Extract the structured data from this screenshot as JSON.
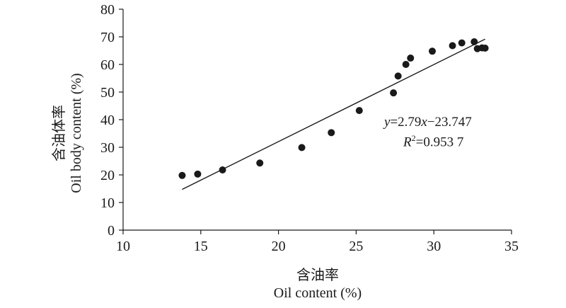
{
  "chart_data": {
    "type": "scatter",
    "xlabel_cn": "含油率",
    "xlabel_en": "Oil content (%)",
    "ylabel_cn": "含油体率",
    "ylabel_en": "Oil body content (%)",
    "xlim": [
      10,
      35
    ],
    "ylim": [
      0,
      80
    ],
    "xticks": [
      10,
      15,
      20,
      25,
      30,
      35
    ],
    "yticks": [
      0,
      10,
      20,
      30,
      40,
      50,
      60,
      70,
      80
    ],
    "grid": false,
    "points": [
      {
        "x": 13.8,
        "y": 19.8
      },
      {
        "x": 14.8,
        "y": 20.3
      },
      {
        "x": 16.4,
        "y": 21.8
      },
      {
        "x": 18.8,
        "y": 24.3
      },
      {
        "x": 21.5,
        "y": 29.9
      },
      {
        "x": 23.4,
        "y": 35.3
      },
      {
        "x": 25.2,
        "y": 43.3
      },
      {
        "x": 27.4,
        "y": 49.7
      },
      {
        "x": 27.7,
        "y": 55.8
      },
      {
        "x": 28.2,
        "y": 60.0
      },
      {
        "x": 28.5,
        "y": 62.3
      },
      {
        "x": 29.9,
        "y": 64.8
      },
      {
        "x": 31.2,
        "y": 66.8
      },
      {
        "x": 31.8,
        "y": 67.8
      },
      {
        "x": 32.6,
        "y": 68.2
      },
      {
        "x": 32.8,
        "y": 65.7
      },
      {
        "x": 33.1,
        "y": 66.0
      },
      {
        "x": 33.3,
        "y": 65.9
      }
    ],
    "fit": {
      "slope": 2.79,
      "intercept": -23.747,
      "x_range": [
        13.8,
        33.3
      ],
      "equation_y": "y",
      "equation_rest": "=2.79",
      "equation_x": "x",
      "equation_tail": "−23.747",
      "r2_label": "R",
      "r2_sup": "2",
      "r2_value": "=0.953 7"
    }
  }
}
